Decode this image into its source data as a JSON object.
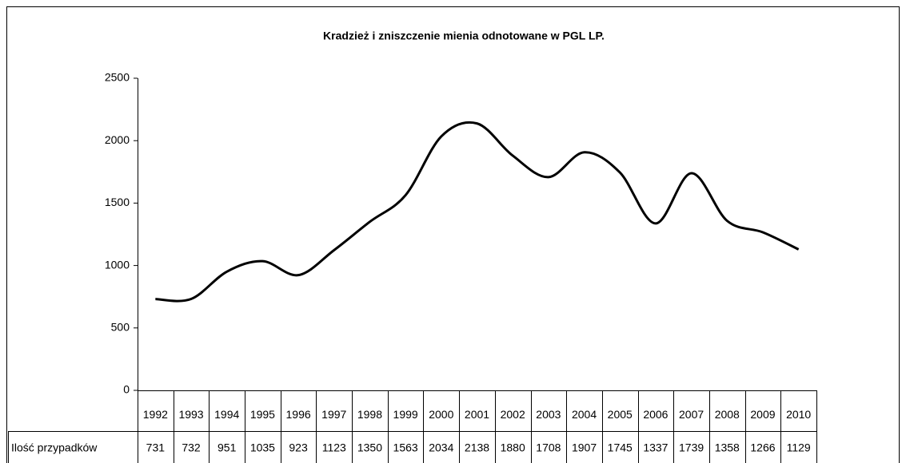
{
  "chart_data": {
    "type": "line",
    "title": "Kradzież i zniszczenie mienia odnotowane w PGL LP.",
    "categories": [
      "1992",
      "1993",
      "1994",
      "1995",
      "1996",
      "1997",
      "1998",
      "1999",
      "2000",
      "2001",
      "2002",
      "2003",
      "2004",
      "2005",
      "2006",
      "2007",
      "2008",
      "2009",
      "2010"
    ],
    "series": [
      {
        "name": "Ilość przypadków",
        "color": "#000000",
        "values": [
          731,
          732,
          951,
          1035,
          923,
          1123,
          1350,
          1563,
          2034,
          2138,
          1880,
          1708,
          1907,
          1745,
          1337,
          1739,
          1358,
          1266,
          1129
        ]
      }
    ],
    "ylim": [
      0,
      2500
    ],
    "yticks": [
      0,
      500,
      1000,
      1500,
      2000,
      2500
    ],
    "smooth": true
  }
}
